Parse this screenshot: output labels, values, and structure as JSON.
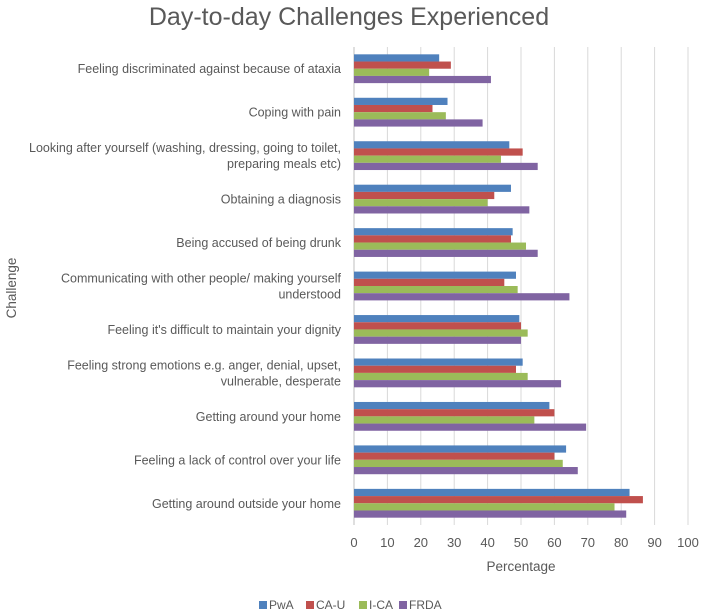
{
  "chart_data": {
    "type": "bar",
    "orientation": "horizontal",
    "title": "Day-to-day Challenges Experienced",
    "xlabel": "Percentage",
    "ylabel": "Challenge",
    "xlim": [
      0,
      100
    ],
    "xticks": [
      0,
      10,
      20,
      30,
      40,
      50,
      60,
      70,
      80,
      90,
      100
    ],
    "grid": true,
    "legend_position": "bottom",
    "categories": [
      [
        "Feeling discriminated against because of ataxia"
      ],
      [
        "Coping with pain"
      ],
      [
        "Looking after yourself (washing, dressing, going to toilet,",
        "preparing meals etc)"
      ],
      [
        "Obtaining a diagnosis"
      ],
      [
        "Being accused of being drunk"
      ],
      [
        "Communicating with other people/ making yourself",
        "understood"
      ],
      [
        "Feeling it's difficult to maintain your dignity"
      ],
      [
        "Feeling strong emotions e.g. anger, denial, upset,",
        "vulnerable, desperate"
      ],
      [
        "Getting around your home"
      ],
      [
        "Feeling a lack of control over your life"
      ],
      [
        "Getting around outside your home"
      ]
    ],
    "series": [
      {
        "name": "PwA",
        "color": "#4f81bd",
        "values": [
          25.5,
          28,
          46.5,
          47,
          47.5,
          48.5,
          49.5,
          50.5,
          58.5,
          63.5,
          82.5
        ]
      },
      {
        "name": "CA-U",
        "color": "#c0504d",
        "values": [
          29,
          23.5,
          50.5,
          42,
          47,
          45,
          50,
          48.5,
          60,
          60,
          86.5
        ]
      },
      {
        "name": "I-CA",
        "color": "#9bbb59",
        "values": [
          22.5,
          27.5,
          44,
          40,
          51.5,
          49,
          52,
          52,
          54,
          62.5,
          78
        ]
      },
      {
        "name": "FRDA",
        "color": "#8064a2",
        "values": [
          41,
          38.5,
          55,
          52.5,
          55,
          64.5,
          50,
          62,
          69.5,
          67,
          81.5
        ]
      }
    ]
  }
}
